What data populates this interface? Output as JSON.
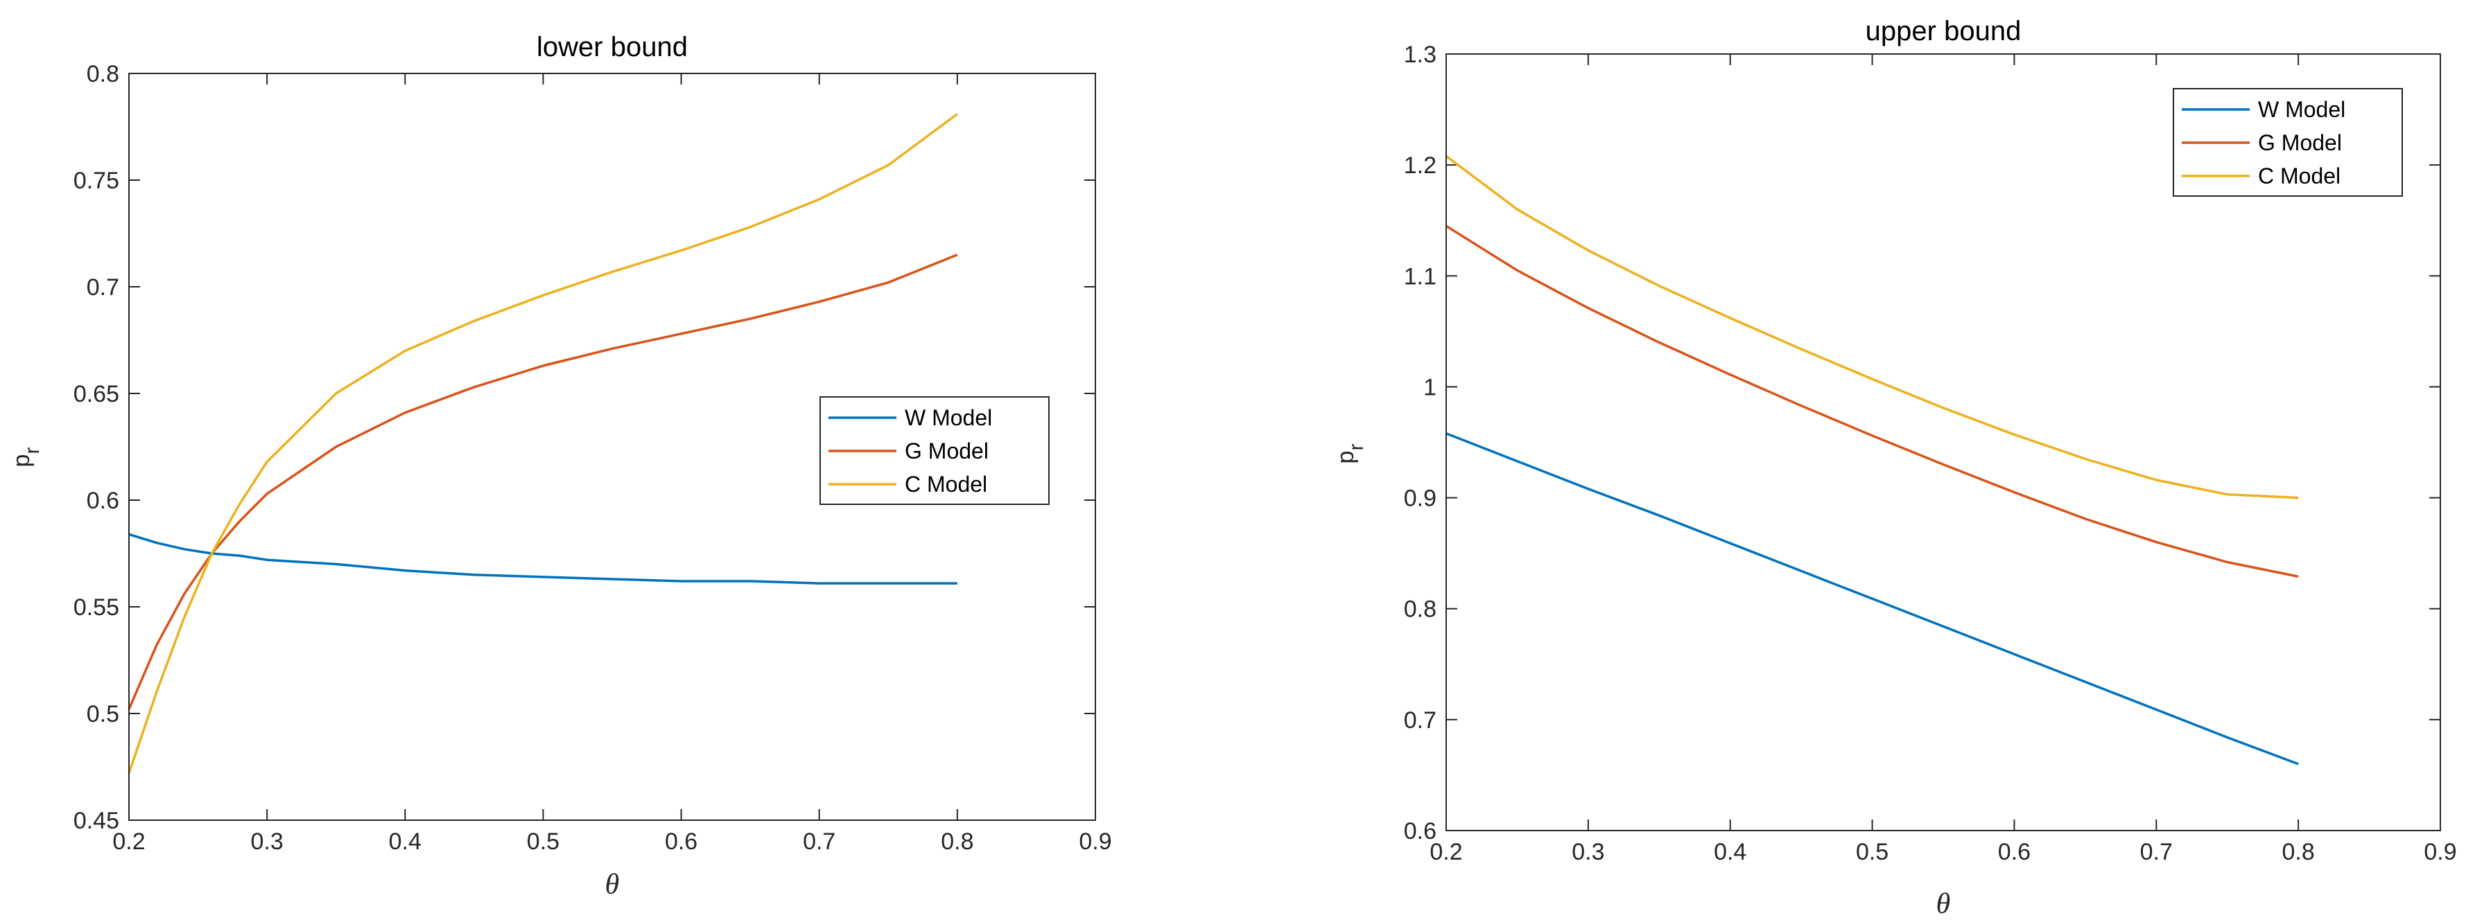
{
  "chart_data": [
    {
      "type": "line",
      "title": "lower bound",
      "xlabel": "θ",
      "ylabel": "p",
      "ylabel_subscript": "r",
      "xlim": [
        0.2,
        0.9
      ],
      "ylim": [
        0.45,
        0.8
      ],
      "xticks": [
        "0.2",
        "0.3",
        "0.4",
        "0.5",
        "0.6",
        "0.7",
        "0.8",
        "0.9"
      ],
      "yticks": [
        "0.45",
        "0.5",
        "0.55",
        "0.6",
        "0.65",
        "0.7",
        "0.75",
        "0.8"
      ],
      "legend_position": "right",
      "x": [
        0.2,
        0.22,
        0.24,
        0.26,
        0.28,
        0.3,
        0.35,
        0.4,
        0.45,
        0.5,
        0.55,
        0.6,
        0.65,
        0.7,
        0.75,
        0.8
      ],
      "series": [
        {
          "name": "W Model",
          "color": "#0072BD",
          "values": [
            0.584,
            0.58,
            0.577,
            0.575,
            0.574,
            0.572,
            0.57,
            0.567,
            0.565,
            0.564,
            0.563,
            0.562,
            0.562,
            0.561,
            0.561,
            0.561
          ]
        },
        {
          "name": "G Model",
          "color": "#D95319",
          "values": [
            0.502,
            0.532,
            0.556,
            0.575,
            0.59,
            0.603,
            0.625,
            0.641,
            0.653,
            0.663,
            0.671,
            0.678,
            0.685,
            0.693,
            0.702,
            0.715
          ]
        },
        {
          "name": "C Model",
          "color": "#EDB120",
          "values": [
            0.472,
            0.51,
            0.545,
            0.575,
            0.598,
            0.618,
            0.65,
            0.67,
            0.684,
            0.696,
            0.707,
            0.717,
            0.728,
            0.741,
            0.757,
            0.781
          ]
        }
      ]
    },
    {
      "type": "line",
      "title": "upper bound",
      "xlabel": "θ",
      "ylabel": "p",
      "ylabel_subscript": "r",
      "xlim": [
        0.2,
        0.9
      ],
      "ylim": [
        0.6,
        1.3
      ],
      "xticks": [
        "0.2",
        "0.3",
        "0.4",
        "0.5",
        "0.6",
        "0.7",
        "0.8",
        "0.9"
      ],
      "yticks": [
        "0.6",
        "0.7",
        "0.8",
        "0.9",
        "1",
        "1.1",
        "1.2",
        "1.3"
      ],
      "legend_position": "top-right",
      "x": [
        0.2,
        0.25,
        0.3,
        0.35,
        0.4,
        0.45,
        0.5,
        0.55,
        0.6,
        0.65,
        0.7,
        0.75,
        0.8
      ],
      "series": [
        {
          "name": "W Model",
          "color": "#0072BD",
          "values": [
            0.958,
            0.933,
            0.908,
            0.884,
            0.859,
            0.834,
            0.809,
            0.784,
            0.759,
            0.734,
            0.709,
            0.684,
            0.66
          ]
        },
        {
          "name": "G Model",
          "color": "#D95319",
          "values": [
            1.145,
            1.105,
            1.071,
            1.04,
            1.011,
            0.983,
            0.956,
            0.93,
            0.905,
            0.881,
            0.86,
            0.842,
            0.829
          ]
        },
        {
          "name": "C Model",
          "color": "#EDB120",
          "values": [
            1.208,
            1.16,
            1.123,
            1.091,
            1.062,
            1.034,
            1.007,
            0.981,
            0.957,
            0.935,
            0.916,
            0.903,
            0.9
          ]
        }
      ]
    }
  ]
}
